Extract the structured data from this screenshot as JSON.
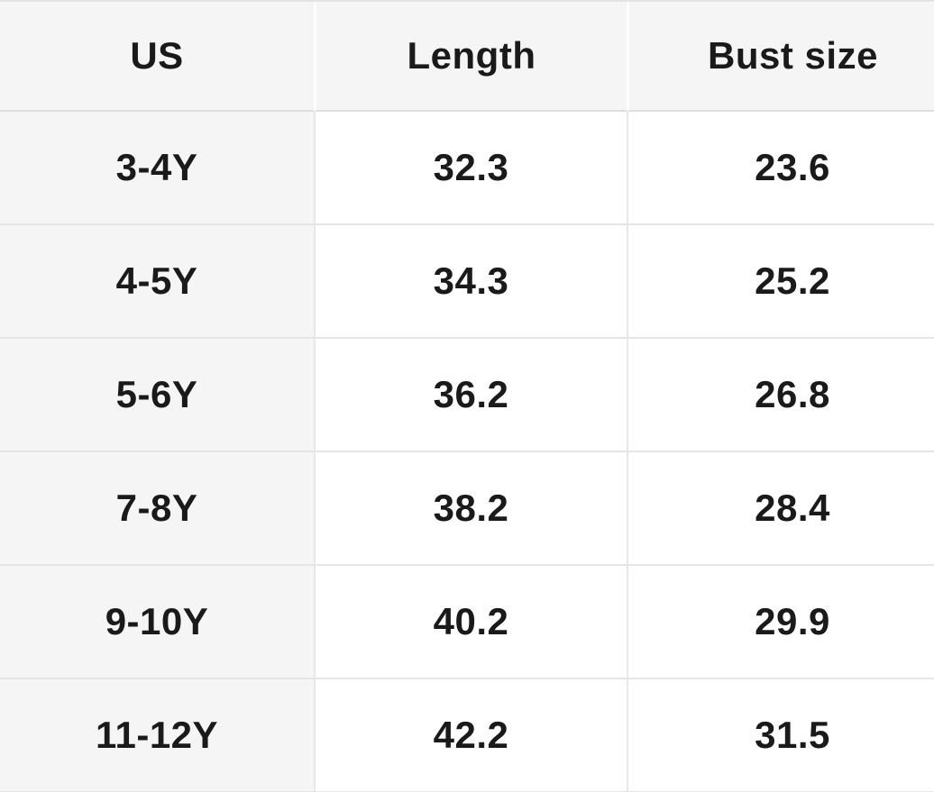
{
  "size_chart": {
    "columns": [
      {
        "label": "US"
      },
      {
        "label": "Length"
      },
      {
        "label": "Bust size"
      }
    ],
    "rows": [
      {
        "us": "3-4Y",
        "length": "32.3",
        "bust_size": "23.6"
      },
      {
        "us": "4-5Y",
        "length": "34.3",
        "bust_size": "25.2"
      },
      {
        "us": "5-6Y",
        "length": "36.2",
        "bust_size": "26.8"
      },
      {
        "us": "7-8Y",
        "length": "38.2",
        "bust_size": "28.4"
      },
      {
        "us": "9-10Y",
        "length": "40.2",
        "bust_size": "29.9"
      },
      {
        "us": "11-12Y",
        "length": "42.2",
        "bust_size": "31.5"
      }
    ]
  },
  "colors": {
    "header_background": "#f5f5f5",
    "row_label_background": "#f5f5f5",
    "cell_background": "#ffffff",
    "row_border": "#e5e5e5",
    "header_divider": "#fdfdfd",
    "text": "#1a1a1a"
  }
}
